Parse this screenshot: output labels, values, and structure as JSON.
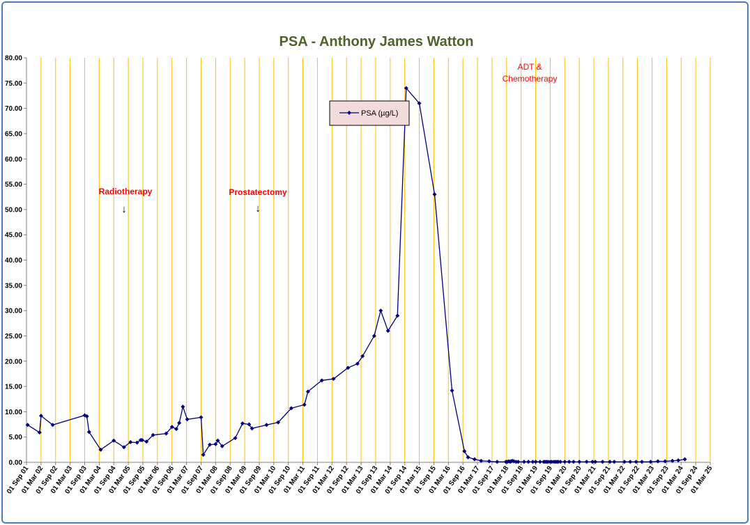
{
  "chart_data": {
    "type": "line",
    "title": "PSA - Anthony James Watton",
    "xlabel": "",
    "ylabel": "",
    "ylim": [
      0,
      80
    ],
    "yticks": [
      "0.00",
      "5.00",
      "10.00",
      "15.00",
      "20.00",
      "25.00",
      "30.00",
      "35.00",
      "40.00",
      "45.00",
      "50.00",
      "55.00",
      "60.00",
      "65.00",
      "70.00",
      "75.00",
      "80.00"
    ],
    "xticks": [
      "01 Sep 01",
      "01 Mar 02",
      "01 Sep 02",
      "01 Mar 03",
      "01 Sep 03",
      "01 Mar 04",
      "01 Sep 04",
      "01 Mar 05",
      "01 Sep 05",
      "01 Mar 06",
      "01 Sep 06",
      "01 Mar 07",
      "01 Sep 07",
      "01 Mar 08",
      "01 Sep 08",
      "01 Mar 09",
      "01 Sep 09",
      "01 Mar 10",
      "01 Sep 10",
      "01 Mar 11",
      "01 Sep 11",
      "01 Mar 12",
      "01 Sep 12",
      "01 Mar 13",
      "01 Sep 13",
      "01 Mar 14",
      "01 Sep 14",
      "01 Mar 15",
      "01 Sep 15",
      "01 Mar 16",
      "01 Sep 16",
      "01 Mar 17",
      "01 Sep 17",
      "01 Mar 18",
      "01 Sep 18",
      "01 Mar 19",
      "01 Sep 19",
      "01 Mar 20",
      "01 Sep 20",
      "01 Mar 21",
      "01 Sep 21",
      "01 Mar 22",
      "01 Sep 22",
      "01 Mar 23",
      "01 Sep 23",
      "01 Mar 24",
      "01 Sep 24",
      "01 Mar 25"
    ],
    "grid": "vertical",
    "colors": {
      "series": "#000080",
      "grid": "#ffc000",
      "legend_bg": "#f2dcdb",
      "title": "#4f6228",
      "annotation": "#ff0000"
    },
    "series": [
      {
        "name": "PSA (µg/L)",
        "x": [
          0.08,
          0.9,
          1.0,
          1.8,
          4.0,
          4.15,
          4.3,
          5.1,
          6.0,
          6.7,
          7.15,
          7.6,
          7.85,
          7.95,
          8.25,
          8.7,
          9.6,
          10.0,
          10.3,
          10.5,
          10.75,
          11.05,
          12.0,
          12.15,
          12.6,
          13.0,
          13.15,
          13.45,
          14.35,
          14.85,
          15.3,
          15.5,
          16.5,
          17.3,
          18.2,
          19.1,
          19.35,
          20.3,
          21.1,
          22.1,
          22.75,
          23.1,
          23.9,
          24.35,
          24.85,
          25.5,
          26.1,
          27.0,
          28.05,
          29.25,
          30.1,
          30.35,
          30.8,
          31.25,
          31.8,
          32.35,
          32.95,
          33.05,
          33.15,
          33.25,
          33.3,
          33.4,
          33.5,
          33.65,
          33.8,
          34.2,
          34.5,
          34.8,
          35.0,
          35.3,
          35.55,
          35.65,
          35.75,
          35.85,
          36.0,
          36.1,
          36.25,
          36.35,
          36.45,
          36.55,
          36.7,
          37.0,
          37.3,
          37.6,
          38.0,
          38.5,
          38.9,
          39.1,
          39.6,
          40.1,
          40.4,
          41.1,
          41.5,
          41.9,
          42.3,
          42.9,
          43.4,
          43.9,
          44.4,
          44.8,
          45.25
        ],
        "y": [
          7.4,
          5.9,
          9.2,
          7.4,
          9.3,
          9.1,
          6.0,
          2.5,
          4.3,
          3.0,
          4.0,
          3.9,
          4.4,
          4.4,
          4.1,
          5.4,
          5.7,
          7.0,
          6.6,
          7.8,
          11.0,
          8.5,
          8.9,
          1.5,
          3.5,
          3.6,
          4.3,
          3.2,
          4.8,
          7.7,
          7.5,
          6.7,
          7.4,
          7.9,
          10.7,
          11.4,
          14.0,
          16.2,
          16.5,
          18.7,
          19.5,
          21.0,
          25.0,
          30.0,
          26.0,
          29.0,
          74.0,
          71.0,
          53.0,
          14.2,
          2.2,
          1.0,
          0.6,
          0.3,
          0.2,
          0.1,
          0.1,
          0.1,
          0.2,
          0.1,
          0.2,
          0.3,
          0.2,
          0.1,
          0.1,
          0.1,
          0.1,
          0.1,
          0.1,
          0.1,
          0.1,
          0.1,
          0.1,
          0.1,
          0.1,
          0.1,
          0.1,
          0.1,
          0.1,
          0.1,
          0.1,
          0.1,
          0.1,
          0.1,
          0.1,
          0.1,
          0.1,
          0.1,
          0.1,
          0.1,
          0.1,
          0.1,
          0.1,
          0.1,
          0.1,
          0.1,
          0.2,
          0.2,
          0.3,
          0.4,
          0.6
        ]
      }
    ],
    "annotations": [
      {
        "label": "Radiotherapy",
        "arrow": "↓"
      },
      {
        "label": "Prostatectomy",
        "arrow": "↓"
      },
      {
        "label_line1": "ADT &",
        "label_line2": "Chemotherapy"
      }
    ],
    "legend_placement": "upper-middle"
  }
}
